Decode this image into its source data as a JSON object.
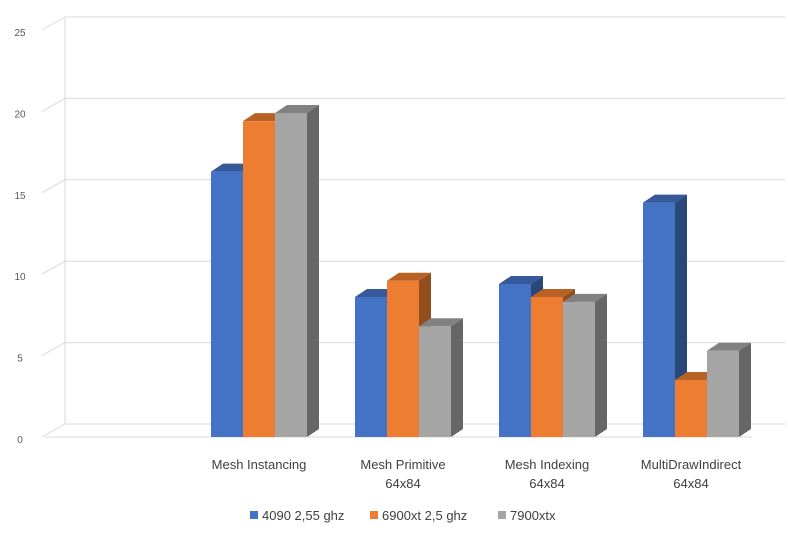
{
  "chart_data": {
    "type": "bar",
    "title": "",
    "xlabel": "",
    "ylabel": "",
    "ylim": [
      0,
      25
    ],
    "yticks": [
      "0",
      "5",
      "10",
      "15",
      "20",
      "25"
    ],
    "grid": true,
    "legend_position": "bottom",
    "categories": [
      [
        "",
        ""
      ],
      [
        "Mesh Instancing",
        ""
      ],
      [
        "Mesh Primitive",
        "64x84"
      ],
      [
        "Mesh Indexing",
        "64x84"
      ],
      [
        "MultiDrawIndirect",
        "64x84"
      ]
    ],
    "series": [
      {
        "name": "4090 2,55 ghz",
        "color": "#4472c4",
        "values": [
          null,
          16.3,
          8.6,
          9.4,
          14.4
        ]
      },
      {
        "name": "6900xt 2,5 ghz",
        "color": "#ed7d31",
        "values": [
          null,
          19.4,
          9.6,
          8.6,
          3.5
        ]
      },
      {
        "name": "7900xtx",
        "color": "#a5a5a5",
        "values": [
          null,
          19.9,
          6.8,
          8.3,
          5.3
        ]
      }
    ]
  }
}
